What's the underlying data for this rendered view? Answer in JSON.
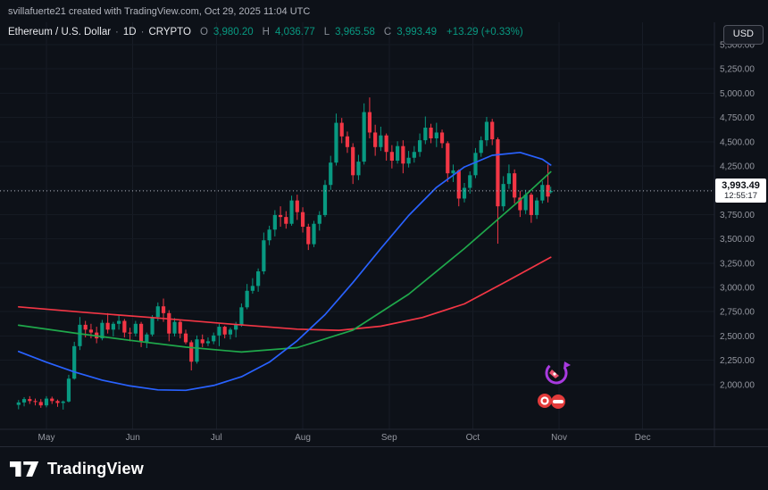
{
  "topbar": {
    "attribution": "svillafuerte21 created with TradingView.com, Oct 29, 2025 11:04 UTC"
  },
  "legend": {
    "symbol": "Ethereum / U.S. Dollar",
    "separator": "·",
    "interval": "1D",
    "market": "CRYPTO",
    "open_label": "O",
    "open_value": "3,980.20",
    "high_label": "H",
    "high_value": "4,036.77",
    "low_label": "L",
    "low_value": "3,965.58",
    "close_label": "C",
    "close_value": "3,993.49",
    "change_value": "+13.29 (+0.33%)"
  },
  "toolbar": {
    "currency_label": "USD"
  },
  "price_scale": {
    "last_price": "3,993.49",
    "countdown": "12:55:17"
  },
  "footer": {
    "brand": "TradingView"
  },
  "colors": {
    "background": "#0d1118",
    "up": "#089981",
    "down": "#F23645",
    "ma_fast_blue": "#2962FF",
    "ma_medium_green": "#1fa84b",
    "ma_slow_red": "#f23645",
    "axis_text": "#9598a1",
    "last_price_label_bg": "#ffffff",
    "legend_value_green": "#089981"
  },
  "chart_data": {
    "type": "candlestick",
    "title": "Ethereum / U.S. Dollar",
    "interval": "1D",
    "market": "CRYPTO",
    "up_color": "#089981",
    "down_color": "#F23645",
    "grid": true,
    "legend_position": "top-left",
    "ylim": [
      1540,
      5730
    ],
    "last_price_line": 3993.49,
    "last": {
      "open": 3980.2,
      "high": 4036.77,
      "low": 3965.58,
      "close": 3993.49,
      "change": 13.29,
      "change_pct": 0.33
    },
    "y_ticks": [
      5500,
      5250,
      5000,
      4750,
      4500,
      4250,
      4000,
      3750,
      3500,
      3250,
      3000,
      2750,
      2500,
      2250,
      2000
    ],
    "x_ticks": [
      {
        "label": "May",
        "date": "2025-05-01"
      },
      {
        "label": "Jun",
        "date": "2025-06-01"
      },
      {
        "label": "Jul",
        "date": "2025-07-01"
      },
      {
        "label": "Aug",
        "date": "2025-08-01"
      },
      {
        "label": "Sep",
        "date": "2025-09-01"
      },
      {
        "label": "Oct",
        "date": "2025-10-01"
      },
      {
        "label": "Nov",
        "date": "2025-11-01"
      },
      {
        "label": "Dec",
        "date": "2025-12-01"
      }
    ],
    "candles": {
      "columns": [
        "date",
        "open",
        "high",
        "low",
        "close"
      ],
      "rows": [
        [
          "2025-04-21",
          1790,
          1840,
          1745,
          1815
        ],
        [
          "2025-04-23",
          1815,
          1870,
          1775,
          1850
        ],
        [
          "2025-04-25",
          1850,
          1880,
          1800,
          1830
        ],
        [
          "2025-04-27",
          1830,
          1855,
          1785,
          1820
        ],
        [
          "2025-04-29",
          1820,
          1850,
          1760,
          1785
        ],
        [
          "2025-05-01",
          1785,
          1880,
          1765,
          1855
        ],
        [
          "2025-05-03",
          1855,
          1875,
          1800,
          1830
        ],
        [
          "2025-05-05",
          1830,
          1845,
          1770,
          1810
        ],
        [
          "2025-05-07",
          1810,
          1835,
          1742,
          1825
        ],
        [
          "2025-05-09",
          1825,
          2100,
          1815,
          2060
        ],
        [
          "2025-05-11",
          2060,
          2440,
          2050,
          2395
        ],
        [
          "2025-05-13",
          2395,
          2695,
          2355,
          2615
        ],
        [
          "2025-05-15",
          2615,
          2655,
          2485,
          2565
        ],
        [
          "2025-05-17",
          2565,
          2625,
          2475,
          2535
        ],
        [
          "2025-05-19",
          2535,
          2595,
          2425,
          2475
        ],
        [
          "2025-05-21",
          2475,
          2665,
          2455,
          2635
        ],
        [
          "2025-05-23",
          2635,
          2735,
          2525,
          2565
        ],
        [
          "2025-05-25",
          2565,
          2645,
          2495,
          2625
        ],
        [
          "2025-05-27",
          2625,
          2715,
          2565,
          2655
        ],
        [
          "2025-05-29",
          2655,
          2675,
          2485,
          2535
        ],
        [
          "2025-05-31",
          2535,
          2585,
          2445,
          2525
        ],
        [
          "2025-06-02",
          2525,
          2655,
          2495,
          2625
        ],
        [
          "2025-06-04",
          2625,
          2645,
          2385,
          2435
        ],
        [
          "2025-06-06",
          2435,
          2535,
          2375,
          2515
        ],
        [
          "2025-06-08",
          2515,
          2715,
          2495,
          2695
        ],
        [
          "2025-06-10",
          2695,
          2845,
          2655,
          2805
        ],
        [
          "2025-06-12",
          2805,
          2885,
          2645,
          2735
        ],
        [
          "2025-06-14",
          2735,
          2765,
          2445,
          2525
        ],
        [
          "2025-06-16",
          2525,
          2685,
          2495,
          2645
        ],
        [
          "2025-06-18",
          2645,
          2665,
          2475,
          2525
        ],
        [
          "2025-06-20",
          2525,
          2565,
          2415,
          2435
        ],
        [
          "2025-06-22",
          2435,
          2455,
          2145,
          2235
        ],
        [
          "2025-06-24",
          2235,
          2505,
          2215,
          2465
        ],
        [
          "2025-06-26",
          2465,
          2515,
          2385,
          2425
        ],
        [
          "2025-06-28",
          2425,
          2485,
          2395,
          2445
        ],
        [
          "2025-06-30",
          2445,
          2535,
          2415,
          2505
        ],
        [
          "2025-07-02",
          2505,
          2625,
          2395,
          2595
        ],
        [
          "2025-07-04",
          2595,
          2605,
          2475,
          2515
        ],
        [
          "2025-07-06",
          2515,
          2585,
          2465,
          2565
        ],
        [
          "2025-07-08",
          2565,
          2645,
          2485,
          2615
        ],
        [
          "2025-07-10",
          2615,
          2835,
          2595,
          2795
        ],
        [
          "2025-07-12",
          2795,
          3035,
          2775,
          2965
        ],
        [
          "2025-07-14",
          2965,
          3095,
          2935,
          3015
        ],
        [
          "2025-07-16",
          3015,
          3195,
          2955,
          3165
        ],
        [
          "2025-07-18",
          3165,
          3565,
          3135,
          3485
        ],
        [
          "2025-07-20",
          3485,
          3635,
          3435,
          3595
        ],
        [
          "2025-07-22",
          3595,
          3795,
          3525,
          3745
        ],
        [
          "2025-07-24",
          3745,
          3835,
          3625,
          3725
        ],
        [
          "2025-07-26",
          3725,
          3785,
          3605,
          3655
        ],
        [
          "2025-07-28",
          3655,
          3945,
          3635,
          3895
        ],
        [
          "2025-07-30",
          3895,
          3955,
          3695,
          3775
        ],
        [
          "2025-08-01",
          3775,
          3825,
          3565,
          3625
        ],
        [
          "2025-08-03",
          3625,
          3655,
          3385,
          3445
        ],
        [
          "2025-08-05",
          3445,
          3685,
          3415,
          3655
        ],
        [
          "2025-08-07",
          3655,
          3785,
          3585,
          3745
        ],
        [
          "2025-08-09",
          3745,
          4105,
          3725,
          4055
        ],
        [
          "2025-08-11",
          4055,
          4355,
          4005,
          4285
        ],
        [
          "2025-08-13",
          4285,
          4790,
          4255,
          4695
        ],
        [
          "2025-08-15",
          4695,
          4745,
          4485,
          4555
        ],
        [
          "2025-08-17",
          4555,
          4605,
          4385,
          4445
        ],
        [
          "2025-08-19",
          4445,
          4485,
          4065,
          4155
        ],
        [
          "2025-08-21",
          4155,
          4365,
          4105,
          4295
        ],
        [
          "2025-08-23",
          4295,
          4895,
          4265,
          4805
        ],
        [
          "2025-08-25",
          4805,
          4956,
          4535,
          4595
        ],
        [
          "2025-08-27",
          4595,
          4675,
          4355,
          4445
        ],
        [
          "2025-08-29",
          4445,
          4655,
          4405,
          4565
        ],
        [
          "2025-08-31",
          4565,
          4585,
          4305,
          4395
        ],
        [
          "2025-09-02",
          4395,
          4465,
          4225,
          4305
        ],
        [
          "2025-09-04",
          4305,
          4505,
          4275,
          4455
        ],
        [
          "2025-09-06",
          4455,
          4515,
          4175,
          4275
        ],
        [
          "2025-09-08",
          4275,
          4405,
          4235,
          4335
        ],
        [
          "2025-09-10",
          4335,
          4455,
          4285,
          4395
        ],
        [
          "2025-09-12",
          4395,
          4585,
          4345,
          4515
        ],
        [
          "2025-09-14",
          4515,
          4760,
          4475,
          4645
        ],
        [
          "2025-09-16",
          4645,
          4685,
          4485,
          4535
        ],
        [
          "2025-09-18",
          4535,
          4695,
          4445,
          4595
        ],
        [
          "2025-09-20",
          4595,
          4625,
          4435,
          4485
        ],
        [
          "2025-09-22",
          4485,
          4505,
          4085,
          4175
        ],
        [
          "2025-09-24",
          4175,
          4265,
          4085,
          4205
        ],
        [
          "2025-09-26",
          4205,
          4215,
          3835,
          3915
        ],
        [
          "2025-09-28",
          3915,
          4075,
          3875,
          4025
        ],
        [
          "2025-09-30",
          4025,
          4195,
          3965,
          4155
        ],
        [
          "2025-10-02",
          4155,
          4435,
          4125,
          4385
        ],
        [
          "2025-10-04",
          4385,
          4555,
          4345,
          4515
        ],
        [
          "2025-10-06",
          4515,
          4756,
          4455,
          4705
        ],
        [
          "2025-10-08",
          4705,
          4735,
          4465,
          4525
        ],
        [
          "2025-10-10",
          4525,
          4545,
          3450,
          3835
        ],
        [
          "2025-10-12",
          3835,
          4145,
          3785,
          4065
        ],
        [
          "2025-10-14",
          4065,
          4265,
          4015,
          4175
        ],
        [
          "2025-10-16",
          4175,
          4215,
          3865,
          3925
        ],
        [
          "2025-10-18",
          3925,
          3995,
          3725,
          3795
        ],
        [
          "2025-10-20",
          3795,
          4005,
          3755,
          3955
        ],
        [
          "2025-10-22",
          3955,
          3975,
          3665,
          3745
        ],
        [
          "2025-10-24",
          3745,
          3925,
          3705,
          3895
        ],
        [
          "2025-10-26",
          3895,
          4095,
          3865,
          4055
        ],
        [
          "2025-10-28",
          4055,
          4265,
          3875,
          3935
        ],
        [
          "2025-10-29",
          3980.2,
          4036.77,
          3965.58,
          3993.49
        ]
      ]
    },
    "overlays": [
      {
        "name": "ma-fast-blue",
        "color": "#2962FF",
        "points": [
          [
            "2025-04-21",
            2340
          ],
          [
            "2025-05-01",
            2230
          ],
          [
            "2025-05-11",
            2130
          ],
          [
            "2025-05-21",
            2045
          ],
          [
            "2025-05-31",
            1985
          ],
          [
            "2025-06-10",
            1945
          ],
          [
            "2025-06-20",
            1940
          ],
          [
            "2025-06-30",
            1990
          ],
          [
            "2025-07-10",
            2080
          ],
          [
            "2025-07-20",
            2230
          ],
          [
            "2025-07-30",
            2450
          ],
          [
            "2025-08-09",
            2720
          ],
          [
            "2025-08-19",
            3050
          ],
          [
            "2025-08-29",
            3400
          ],
          [
            "2025-09-08",
            3740
          ],
          [
            "2025-09-18",
            4030
          ],
          [
            "2025-09-28",
            4240
          ],
          [
            "2025-10-08",
            4360
          ],
          [
            "2025-10-18",
            4390
          ],
          [
            "2025-10-26",
            4320
          ],
          [
            "2025-10-29",
            4260
          ]
        ]
      },
      {
        "name": "ma-medium-green",
        "color": "#1fa84b",
        "points": [
          [
            "2025-04-21",
            2610
          ],
          [
            "2025-05-11",
            2530
          ],
          [
            "2025-05-31",
            2455
          ],
          [
            "2025-06-20",
            2385
          ],
          [
            "2025-07-10",
            2335
          ],
          [
            "2025-07-30",
            2380
          ],
          [
            "2025-08-19",
            2560
          ],
          [
            "2025-09-08",
            2930
          ],
          [
            "2025-09-28",
            3400
          ],
          [
            "2025-10-18",
            3900
          ],
          [
            "2025-10-29",
            4190
          ]
        ]
      },
      {
        "name": "ma-slow-red",
        "color": "#f23645",
        "points": [
          [
            "2025-04-21",
            2800
          ],
          [
            "2025-05-16",
            2740
          ],
          [
            "2025-06-10",
            2685
          ],
          [
            "2025-07-05",
            2625
          ],
          [
            "2025-07-30",
            2570
          ],
          [
            "2025-08-14",
            2558
          ],
          [
            "2025-08-29",
            2600
          ],
          [
            "2025-09-13",
            2690
          ],
          [
            "2025-09-28",
            2830
          ],
          [
            "2025-10-13",
            3060
          ],
          [
            "2025-10-29",
            3310
          ]
        ]
      }
    ]
  }
}
